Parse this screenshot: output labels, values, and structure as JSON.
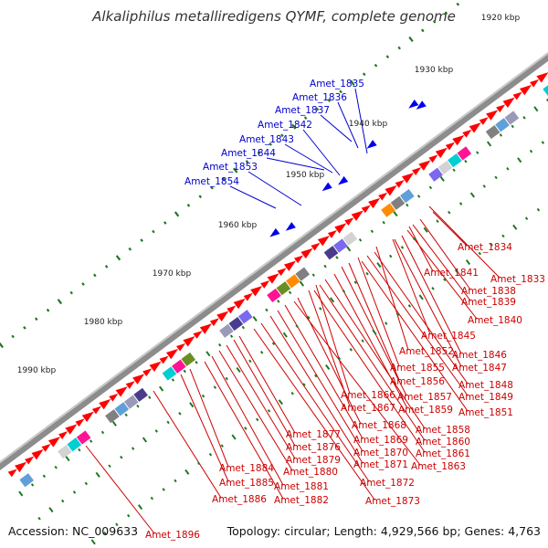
{
  "title": "Alkaliphilus metalliredigens QYMF, complete genome",
  "footer": {
    "accession": "Accession: NC_009633",
    "topology": "Topology: circular; Length: 4,929,566 bp; Genes: 4,763"
  },
  "colors": {
    "backbone": "#8c8c8c",
    "forward_gene": "#ff0000",
    "reverse_gene": "#0000ee",
    "label_forward": "#cc0000",
    "label_reverse": "#0000cc",
    "tick": "#227722"
  },
  "scale_labels": [
    "1920 kbp",
    "1930 kbp",
    "1940 kbp",
    "1950 kbp",
    "1960 kbp",
    "1970 kbp",
    "1980 kbp",
    "1990 kbp"
  ],
  "reverse_labels": [
    "Amet_1835",
    "Amet_1836",
    "Amet_1837",
    "Amet_1842",
    "Amet_1843",
    "Amet_1844",
    "Amet_1853",
    "Amet_1854"
  ],
  "forward_labels": [
    "Amet_1834",
    "Amet_1833",
    "Amet_1841",
    "Amet_1838",
    "Amet_1839",
    "Amet_1840",
    "Amet_1845",
    "Amet_1852",
    "Amet_1846",
    "Amet_1847",
    "Amet_1855",
    "Amet_1856",
    "Amet_1848",
    "Amet_1849",
    "Amet_1866",
    "Amet_1857",
    "Amet_1867",
    "Amet_1859",
    "Amet_1851",
    "Amet_1868",
    "Amet_1858",
    "Amet_1877",
    "Amet_1860",
    "Amet_1869",
    "Amet_1876",
    "Amet_1870",
    "Amet_1861",
    "Amet_1879",
    "Amet_1871",
    "Amet_1863",
    "Amet_1884",
    "Amet_1880",
    "Amet_1872",
    "Amet_1885",
    "Amet_1881",
    "Amet_1886",
    "Amet_1882",
    "Amet_1873",
    "Amet_1896"
  ]
}
